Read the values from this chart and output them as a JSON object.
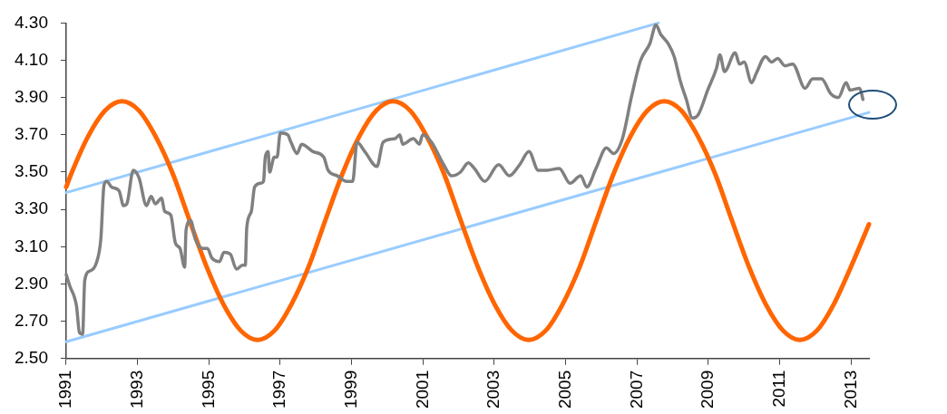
{
  "chart_data": {
    "type": "line",
    "xlim": [
      1991,
      2013.5
    ],
    "xticks": [
      1991,
      1993,
      1995,
      1997,
      1999,
      2001,
      2003,
      2005,
      2007,
      2009,
      2011,
      2013
    ],
    "ylim": [
      2.5,
      4.3
    ],
    "yticks": [
      {
        "value": 2.5,
        "label": "2.50"
      },
      {
        "value": 2.7,
        "label": "2.70"
      },
      {
        "value": 2.9,
        "label": "2.90"
      },
      {
        "value": 3.1,
        "label": "3.10"
      },
      {
        "value": 3.3,
        "label": "3.30"
      },
      {
        "value": 3.5,
        "label": "3.50"
      },
      {
        "value": 3.7,
        "label": "3.70"
      },
      {
        "value": 3.9,
        "label": "3.90"
      },
      {
        "value": 4.1,
        "label": "4.10"
      },
      {
        "value": 4.3,
        "label": "4.30"
      }
    ],
    "grid": false,
    "legend": false,
    "marker": "none",
    "line_style": "solid",
    "series": [
      {
        "color": "#99ccff",
        "x": [
          1991,
          2007.6
        ],
        "values": [
          3.39,
          4.3
        ]
      },
      {
        "color": "#99ccff",
        "x": [
          1991,
          2013.5
        ],
        "values": [
          2.59,
          3.82
        ]
      },
      {
        "color": "#ff6600",
        "x": [
          1991,
          1991.14,
          1991.61,
          1992.09,
          1992.56,
          1993.04,
          1993.51,
          1993.99,
          1994.46,
          1994.94,
          1995.41,
          1995.89,
          1996.36,
          1996.84,
          1997.31,
          1997.79,
          1998.26,
          1998.74,
          1999.21,
          1999.69,
          2000.16,
          2000.64,
          2001.11,
          2001.59,
          2002.06,
          2002.54,
          2003.01,
          2003.49,
          2003.96,
          2004.44,
          2004.91,
          2005.39,
          2005.86,
          2006.34,
          2006.81,
          2007.29,
          2007.76,
          2008.24,
          2008.71,
          2009.19,
          2009.66,
          2010.14,
          2010.61,
          2011.09,
          2011.56,
          2012.04,
          2012.51,
          2012.99,
          2013.5
        ],
        "values": [
          3.42,
          3.49,
          3.69,
          3.83,
          3.88,
          3.83,
          3.69,
          3.49,
          3.24,
          2.99,
          2.79,
          2.65,
          2.6,
          2.65,
          2.79,
          2.99,
          3.24,
          3.49,
          3.69,
          3.83,
          3.88,
          3.83,
          3.69,
          3.49,
          3.24,
          2.99,
          2.79,
          2.65,
          2.6,
          2.65,
          2.79,
          2.99,
          3.24,
          3.49,
          3.69,
          3.83,
          3.88,
          3.83,
          3.69,
          3.49,
          3.24,
          2.99,
          2.79,
          2.65,
          2.6,
          2.65,
          2.79,
          2.99,
          3.22
        ]
      },
      {
        "color": "#808080",
        "x": [
          1991.0,
          1991.1,
          1991.29,
          1991.37,
          1991.46,
          1991.52,
          1991.67,
          1991.84,
          1991.97,
          1992.06,
          1992.14,
          1992.27,
          1992.48,
          1992.61,
          1992.7,
          1992.88,
          1993.04,
          1993.25,
          1993.38,
          1993.5,
          1993.67,
          1993.76,
          1993.93,
          1994.06,
          1994.19,
          1994.32,
          1994.36,
          1994.49,
          1994.62,
          1994.83,
          1994.96,
          1995.08,
          1995.3,
          1995.42,
          1995.6,
          1995.77,
          1995.94,
          1996.02,
          1996.06,
          1996.19,
          1996.28,
          1996.45,
          1996.53,
          1996.58,
          1996.66,
          1996.7,
          1996.83,
          1996.91,
          1997.0,
          1997.21,
          1997.3,
          1997.47,
          1997.6,
          1997.92,
          1998.22,
          1998.34,
          1998.6,
          1998.86,
          1999.03,
          1999.15,
          1999.37,
          1999.71,
          1999.88,
          2000.22,
          2000.35,
          2000.43,
          2000.73,
          2000.9,
          2000.99,
          2001.24,
          2001.58,
          2001.8,
          2002.05,
          2002.27,
          2002.44,
          2002.73,
          2003.12,
          2003.42,
          2003.71,
          2003.97,
          2004.23,
          2004.48,
          2004.82,
          2005.12,
          2005.42,
          2005.59,
          2005.85,
          2006.14,
          2006.34,
          2006.59,
          2006.85,
          2007.1,
          2007.36,
          2007.53,
          2007.66,
          2007.87,
          2008.04,
          2008.21,
          2008.38,
          2008.55,
          2008.72,
          2008.98,
          2009.23,
          2009.32,
          2009.45,
          2009.75,
          2009.87,
          2010.0,
          2010.21,
          2010.34,
          2010.6,
          2010.77,
          2010.94,
          2011.15,
          2011.36,
          2011.71,
          2011.92,
          2012.17,
          2012.43,
          2012.64,
          2012.86,
          2012.97,
          2013.24,
          2013.33
        ],
        "values": [
          2.95,
          2.89,
          2.78,
          2.64,
          2.63,
          2.92,
          2.97,
          3.01,
          3.14,
          3.43,
          3.45,
          3.42,
          3.4,
          3.32,
          3.33,
          3.51,
          3.47,
          3.32,
          3.37,
          3.33,
          3.36,
          3.29,
          3.27,
          3.12,
          3.09,
          2.99,
          3.19,
          3.24,
          3.14,
          3.09,
          3.09,
          3.04,
          3.02,
          3.07,
          3.06,
          2.98,
          3.0,
          3.0,
          3.2,
          3.29,
          3.42,
          3.44,
          3.45,
          3.58,
          3.61,
          3.5,
          3.58,
          3.58,
          3.71,
          3.7,
          3.66,
          3.6,
          3.65,
          3.61,
          3.58,
          3.51,
          3.48,
          3.45,
          3.45,
          3.66,
          3.61,
          3.53,
          3.66,
          3.68,
          3.7,
          3.65,
          3.68,
          3.65,
          3.7,
          3.66,
          3.54,
          3.48,
          3.5,
          3.55,
          3.52,
          3.45,
          3.54,
          3.48,
          3.54,
          3.61,
          3.51,
          3.51,
          3.52,
          3.44,
          3.48,
          3.42,
          3.52,
          3.63,
          3.6,
          3.68,
          3.91,
          4.1,
          4.19,
          4.29,
          4.24,
          4.19,
          4.12,
          3.99,
          3.89,
          3.79,
          3.81,
          3.94,
          4.06,
          4.13,
          4.04,
          4.14,
          4.08,
          4.09,
          3.98,
          4.03,
          4.12,
          4.09,
          4.11,
          4.07,
          4.08,
          3.95,
          4.0,
          4.0,
          3.92,
          3.9,
          3.98,
          3.94,
          3.95,
          3.89
        ]
      }
    ]
  }
}
